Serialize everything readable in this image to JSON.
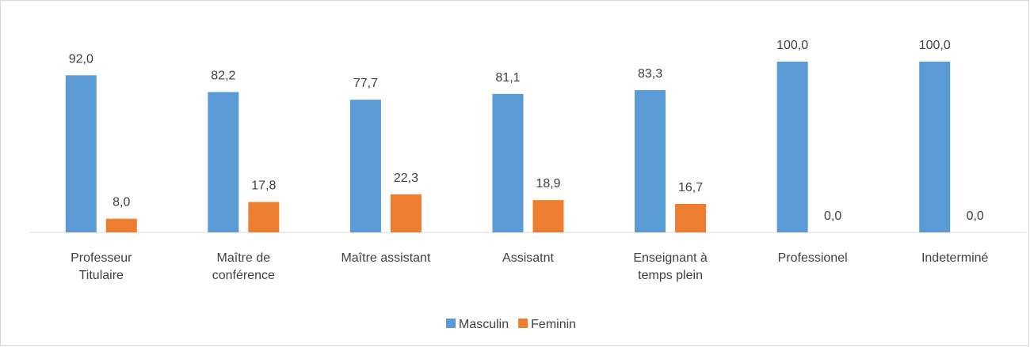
{
  "chart_data": {
    "type": "bar",
    "categories": [
      "Professeur Titulaire",
      "Maître de conférence",
      "Maître assistant",
      "Assisatnt",
      "Enseignant à temps plein",
      "Professionel",
      "Indeterminé"
    ],
    "series": [
      {
        "name": "Masculin",
        "color": "#5b9bd5",
        "values": [
          92.0,
          82.2,
          77.7,
          81.1,
          83.3,
          100.0,
          100.0
        ],
        "value_labels": [
          "92,0",
          "82,2",
          "77,7",
          "81,1",
          "83,3",
          "100,0",
          "100,0"
        ]
      },
      {
        "name": "Feminin",
        "color": "#ed7d31",
        "values": [
          8.0,
          17.8,
          22.3,
          18.9,
          16.7,
          0.0,
          0.0
        ],
        "value_labels": [
          "8,0",
          "17,8",
          "22,3",
          "18,9",
          "16,7",
          "0,0",
          "0,0"
        ]
      }
    ],
    "ylim": [
      0,
      100
    ],
    "grid": false,
    "legend": "bottom"
  }
}
